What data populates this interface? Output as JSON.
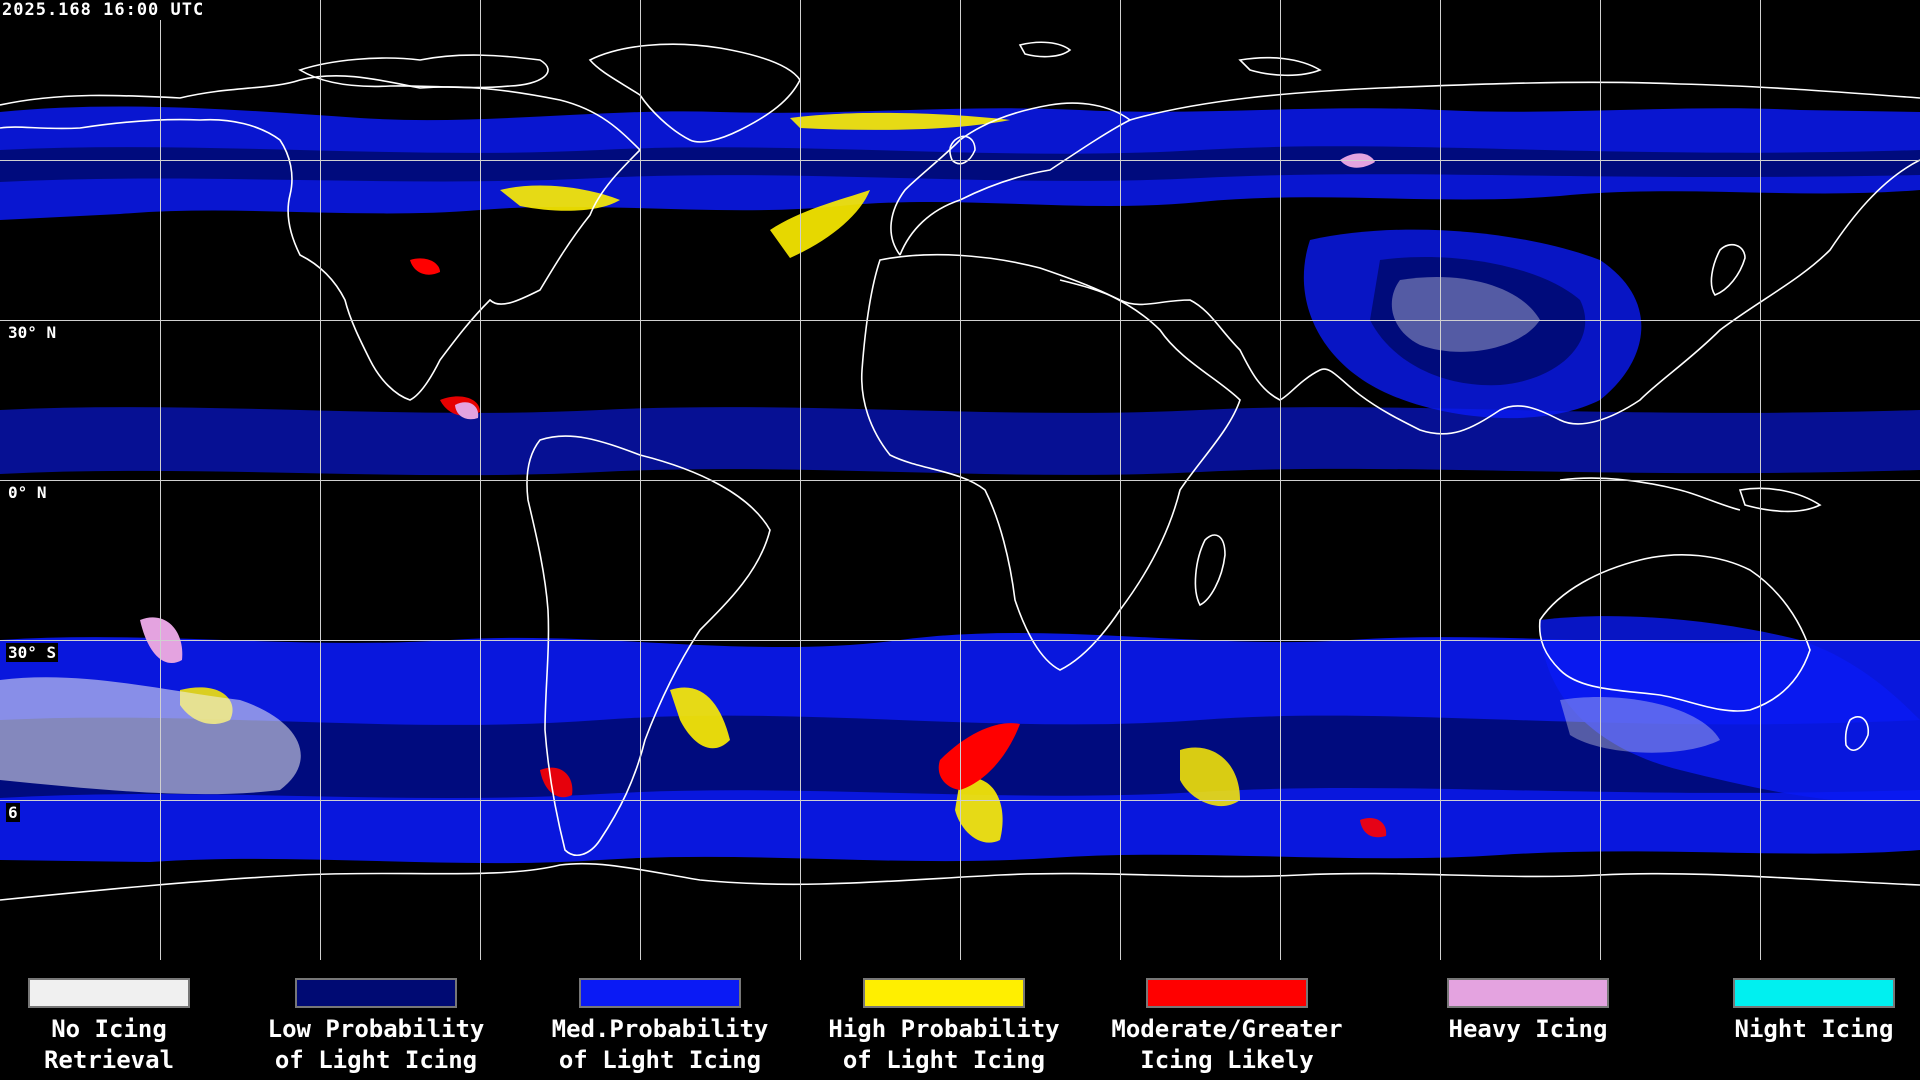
{
  "timestamp": "2025.168 16:00 UTC",
  "lat_labels": [
    "30° N",
    "0° N",
    "30° S",
    "6"
  ],
  "legend": [
    {
      "line1": "No Icing",
      "line2": "Retrieval",
      "color": "#f0f0f0"
    },
    {
      "line1": "Low Probability",
      "line2": "of Light Icing",
      "color": "#000a73"
    },
    {
      "line1": "Med.Probability",
      "line2": "of Light Icing",
      "color": "#0a1af5"
    },
    {
      "line1": "High Probability",
      "line2": "of Light Icing",
      "color": "#ffef00"
    },
    {
      "line1": "Moderate/Greater",
      "line2": "Icing Likely",
      "color": "#ff0000"
    },
    {
      "line1": "Heavy Icing",
      "line2": "",
      "color": "#e4a3e0"
    },
    {
      "line1": "Night Icing",
      "line2": "",
      "color": "#00f0f0"
    }
  ],
  "palette": {
    "background": "#000000",
    "grid": "#d0d0d0",
    "coast": "#ffffff",
    "no_icing": "#f0f0f0",
    "low": "#000a73",
    "med": "#0a1af5",
    "high": "#ffef00",
    "moderate": "#ff0000",
    "heavy": "#e4a3e0"
  },
  "projection": {
    "lon_min": -180,
    "lon_max": 180,
    "lat_max": 90,
    "lat_min": -90
  }
}
